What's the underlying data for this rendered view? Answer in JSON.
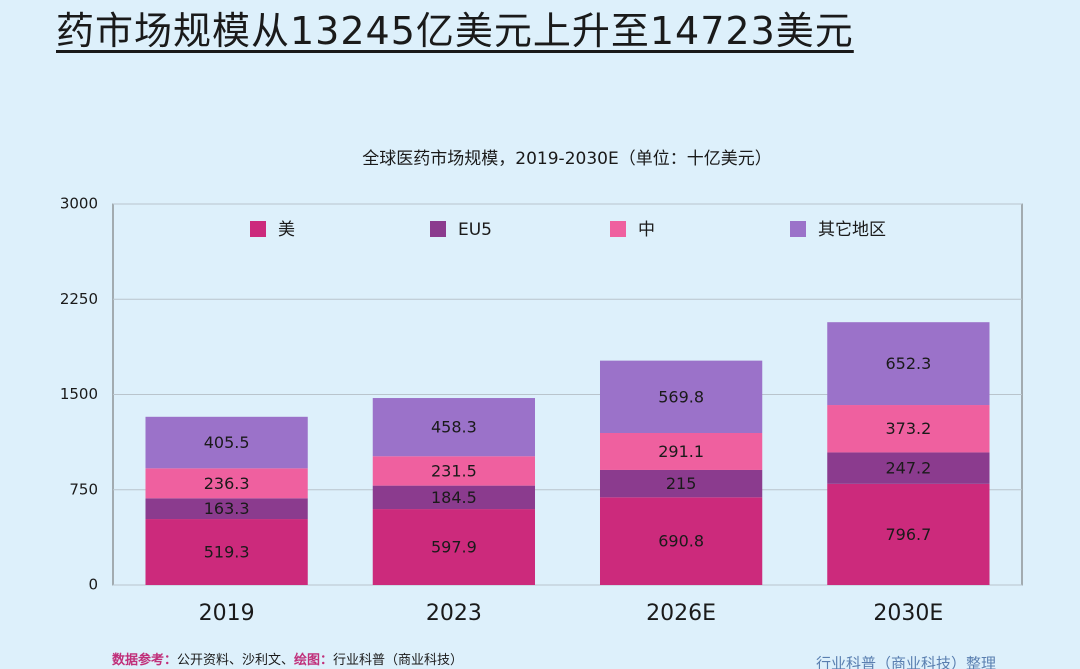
{
  "page_title": "药市场规模从13245亿美元上升至14723美元",
  "chart_data": {
    "type": "stacked_bar",
    "title": "全球医药市场规模，2019-2030E（单位：十亿美元）",
    "categories": [
      "2019",
      "2023",
      "2026E",
      "2030E"
    ],
    "series": [
      {
        "name": "美",
        "color": "#cc2a7c",
        "values": [
          519.3,
          597.9,
          690.8,
          796.7
        ]
      },
      {
        "name": "EU5",
        "color": "#8b3b8e",
        "values": [
          163.3,
          184.5,
          215,
          247.2
        ]
      },
      {
        "name": "中",
        "color": "#ef609f",
        "values": [
          236.3,
          231.5,
          291.1,
          373.2
        ]
      },
      {
        "name": "其它地区",
        "color": "#9b72c9",
        "values": [
          405.5,
          458.3,
          569.8,
          652.3
        ]
      }
    ],
    "ylim": [
      0,
      3000
    ],
    "yticks": [
      0,
      750,
      1500,
      2250,
      3000
    ],
    "grid": true,
    "legend": "top"
  },
  "footer": {
    "source_label": "数据参考：",
    "source": "公开资料、沙利文、",
    "drawing_label": "绘图：",
    "drawing": "行业科普（商业科技）",
    "credit": "行业科普（商业科技）整理"
  }
}
